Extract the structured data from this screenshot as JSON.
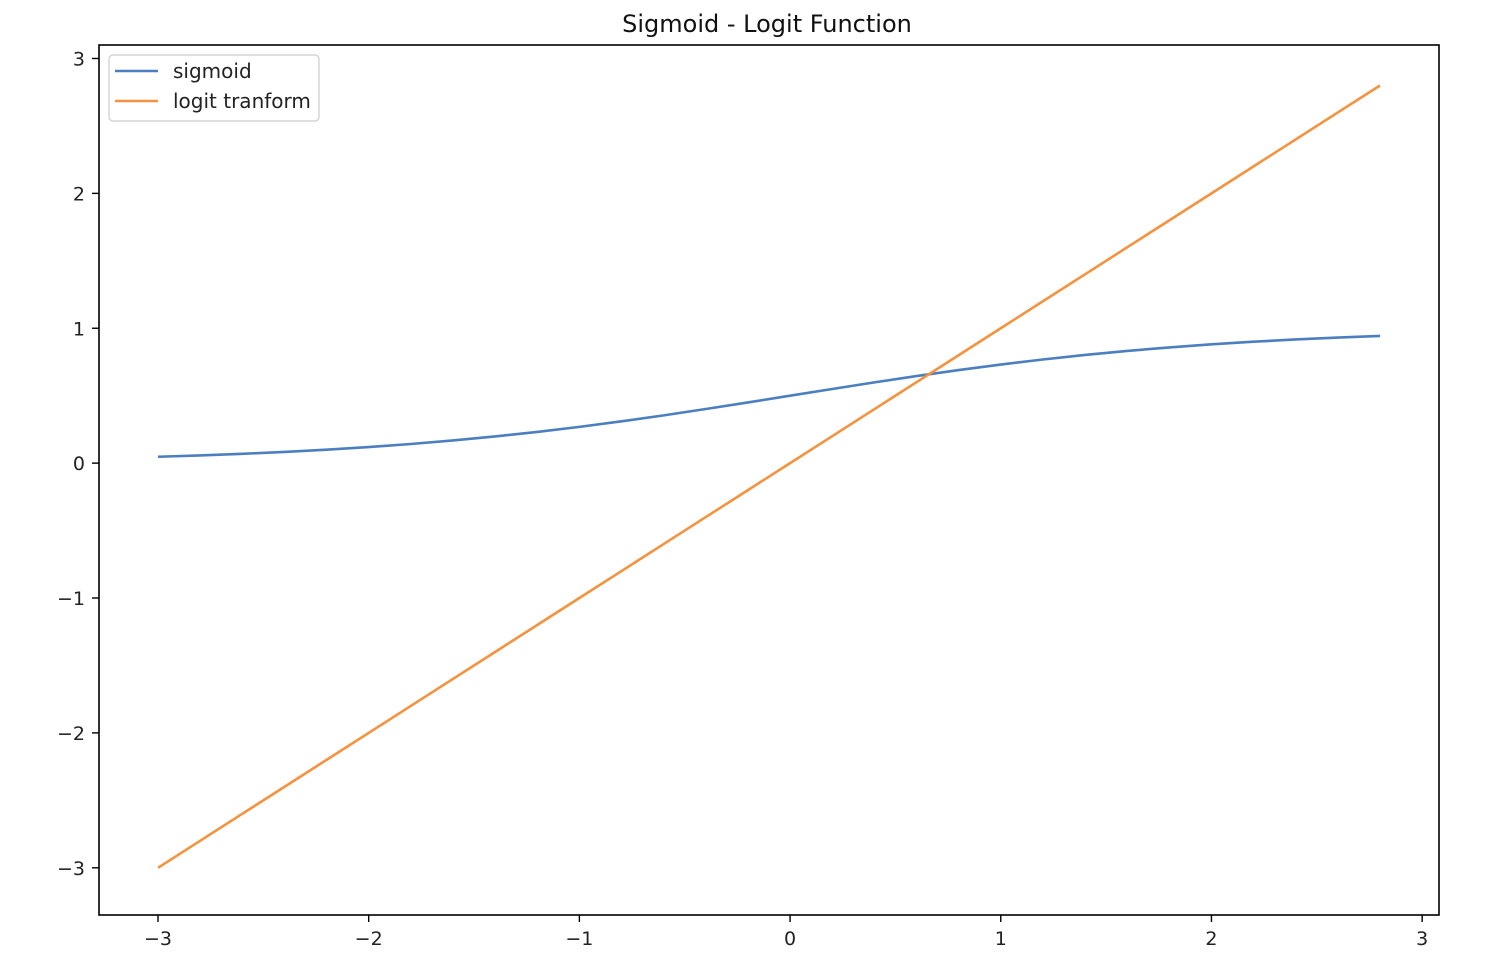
{
  "chart_data": {
    "type": "line",
    "title": "Sigmoid - Logit Function",
    "xlabel": "",
    "ylabel": "",
    "xlim": [
      -3.28,
      3.08
    ],
    "ylim": [
      -3.35,
      3.1
    ],
    "x_ticks": [
      -3,
      -2,
      -1,
      0,
      1,
      2,
      3
    ],
    "y_ticks": [
      -3,
      -2,
      -1,
      0,
      1,
      2,
      3
    ],
    "x_tick_labels": [
      "−3",
      "−2",
      "−1",
      "0",
      "1",
      "2",
      "3"
    ],
    "y_tick_labels": [
      "−3",
      "−2",
      "−1",
      "0",
      "1",
      "2",
      "3"
    ],
    "grid": false,
    "legend_position": "top-left",
    "series": [
      {
        "name": "sigmoid",
        "color": "#4c7fbf",
        "x": [
          -3.0,
          -2.8,
          -2.6,
          -2.4,
          -2.2,
          -2.0,
          -1.8,
          -1.6,
          -1.4,
          -1.2,
          -1.0,
          -0.8,
          -0.6,
          -0.4,
          -0.2,
          0.0,
          0.2,
          0.4,
          0.6,
          0.8,
          1.0,
          1.2,
          1.4,
          1.6,
          1.8,
          2.0,
          2.2,
          2.4,
          2.6,
          2.8
        ],
        "y": [
          0.0474,
          0.0573,
          0.0691,
          0.0832,
          0.0998,
          0.1192,
          0.1419,
          0.168,
          0.1978,
          0.2315,
          0.2689,
          0.31,
          0.3543,
          0.4013,
          0.4502,
          0.5,
          0.5498,
          0.5987,
          0.6457,
          0.69,
          0.7311,
          0.7685,
          0.8022,
          0.832,
          0.8581,
          0.8808,
          0.9002,
          0.9168,
          0.9309,
          0.9427
        ]
      },
      {
        "name": "logit tranform",
        "color": "#f5923e",
        "x": [
          -3.0,
          -2.8,
          -2.6,
          -2.4,
          -2.2,
          -2.0,
          -1.8,
          -1.6,
          -1.4,
          -1.2,
          -1.0,
          -0.8,
          -0.6,
          -0.4,
          -0.2,
          0.0,
          0.2,
          0.4,
          0.6,
          0.8,
          1.0,
          1.2,
          1.4,
          1.6,
          1.8,
          2.0,
          2.2,
          2.4,
          2.6,
          2.8
        ],
        "y": [
          -3.0,
          -2.8,
          -2.6,
          -2.4,
          -2.2,
          -2.0,
          -1.8,
          -1.6,
          -1.4,
          -1.2,
          -1.0,
          -0.8,
          -0.6,
          -0.4,
          -0.2,
          0.0,
          0.2,
          0.4,
          0.6,
          0.8,
          1.0,
          1.2,
          1.4,
          1.6,
          1.8,
          2.0,
          2.2,
          2.4,
          2.6,
          2.8
        ]
      }
    ]
  }
}
